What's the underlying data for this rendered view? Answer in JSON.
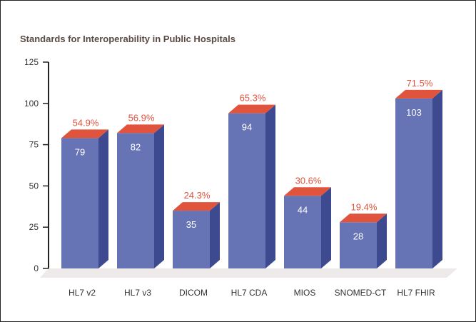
{
  "chart_data": {
    "type": "bar",
    "title": "Standards for Interoperability in Public Hospitals",
    "categories": [
      "HL7 v2",
      "HL7 v3",
      "DICOM",
      "HL7 CDA",
      "MIOS",
      "SNOMED-CT",
      "HL7 FHIR"
    ],
    "values": [
      79,
      82,
      35,
      94,
      44,
      28,
      103
    ],
    "value_labels": [
      "79",
      "82",
      "35",
      "94",
      "44",
      "28",
      "103"
    ],
    "percent_labels": [
      "54.9%",
      "56.9%",
      "24.3%",
      "65.3%",
      "30.6%",
      "19.4%",
      "71.5%"
    ],
    "yticks": [
      0,
      25,
      50,
      75,
      100,
      125
    ],
    "ylim": [
      0,
      125
    ],
    "xlabel": "",
    "ylabel": "",
    "colors": {
      "bar_front": "#6673b5",
      "bar_side": "#3d4a90",
      "bar_top": "#e0533d",
      "percent_text": "#e0533d",
      "floor": "#eeeaea"
    }
  }
}
